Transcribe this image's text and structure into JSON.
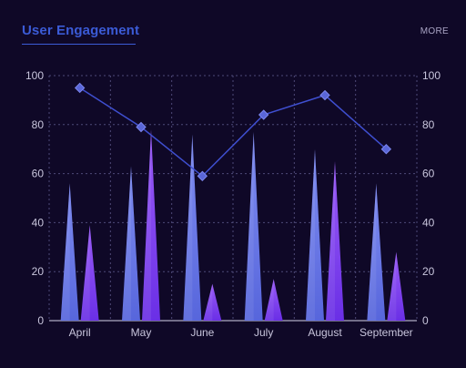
{
  "header": {
    "title": "User Engagement",
    "more_label": "MORE"
  },
  "colors": {
    "background": "#0f0827",
    "title": "#3b5bd6",
    "grid": "#4e4a78",
    "line": "#3f4fd0",
    "series1": "#6878e4",
    "series2": "#7a3ef0"
  },
  "chart_data": {
    "type": "bar",
    "categories": [
      "April",
      "May",
      "June",
      "July",
      "August",
      "September"
    ],
    "series": [
      {
        "values": [
          56,
          63,
          76,
          77,
          70,
          56
        ]
      },
      {
        "values": [
          39,
          78,
          15,
          17,
          65,
          28
        ]
      },
      {
        "values": [
          95,
          79,
          59,
          84,
          92,
          70
        ]
      }
    ],
    "ylim": [
      0,
      100
    ],
    "y_ticks": [
      0,
      20,
      40,
      60,
      80,
      100
    ],
    "y2_ticks": [
      0,
      20,
      40,
      60,
      80,
      100
    ],
    "grid": true,
    "series_marks": [
      "spike-bar",
      "spike-bar",
      "line-diamond"
    ]
  }
}
